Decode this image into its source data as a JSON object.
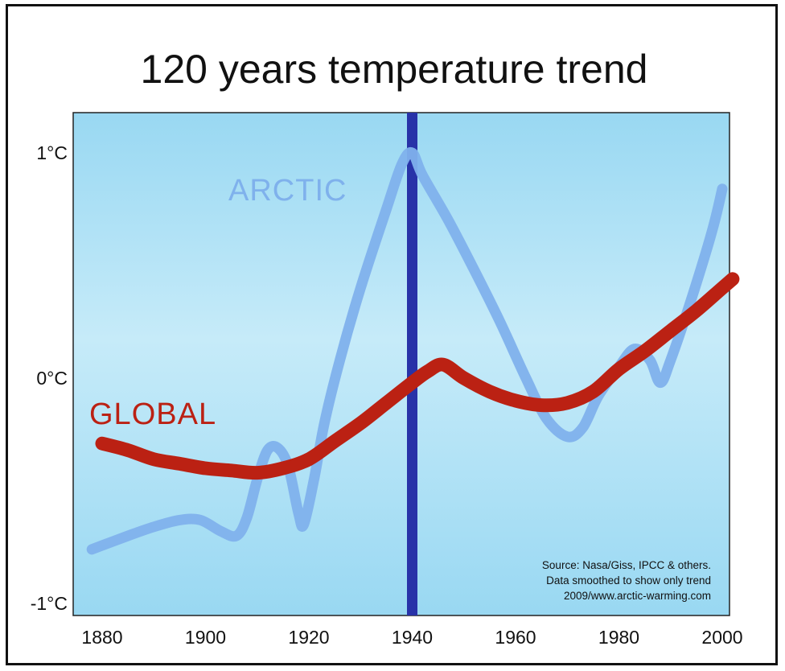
{
  "chart_data": {
    "type": "line",
    "title": "120 years temperature trend",
    "xlim": [
      1875,
      2002
    ],
    "ylim": [
      -1,
      1.15
    ],
    "x_ticks": [
      1880,
      1900,
      1920,
      1940,
      1960,
      1980,
      2000
    ],
    "y_ticks": [
      {
        "value": 1,
        "label": "1°C"
      },
      {
        "value": 0,
        "label": "0°C"
      },
      {
        "value": -1,
        "label": "-1°C"
      }
    ],
    "highlight_year": 1940,
    "series": [
      {
        "name": "ARCTIC",
        "color": "#7fb1ec",
        "points": [
          [
            1878,
            -0.76
          ],
          [
            1885,
            -0.7
          ],
          [
            1890,
            -0.66
          ],
          [
            1895,
            -0.63
          ],
          [
            1899,
            -0.63
          ],
          [
            1903,
            -0.68
          ],
          [
            1906,
            -0.7
          ],
          [
            1908,
            -0.62
          ],
          [
            1910,
            -0.45
          ],
          [
            1912,
            -0.32
          ],
          [
            1914,
            -0.31
          ],
          [
            1916,
            -0.39
          ],
          [
            1918,
            -0.6
          ],
          [
            1919,
            -0.65
          ],
          [
            1921,
            -0.45
          ],
          [
            1923,
            -0.2
          ],
          [
            1926,
            0.08
          ],
          [
            1930,
            0.4
          ],
          [
            1935,
            0.75
          ],
          [
            1938,
            0.95
          ],
          [
            1940,
            1.0
          ],
          [
            1942,
            0.9
          ],
          [
            1947,
            0.7
          ],
          [
            1952,
            0.48
          ],
          [
            1957,
            0.25
          ],
          [
            1962,
            0.0
          ],
          [
            1966,
            -0.18
          ],
          [
            1970,
            -0.26
          ],
          [
            1973,
            -0.22
          ],
          [
            1976,
            -0.08
          ],
          [
            1980,
            0.05
          ],
          [
            1983,
            0.13
          ],
          [
            1986,
            0.08
          ],
          [
            1988,
            -0.02
          ],
          [
            1990,
            0.08
          ],
          [
            1994,
            0.35
          ],
          [
            1998,
            0.65
          ],
          [
            2000,
            0.84
          ]
        ]
      },
      {
        "name": "GLOBAL",
        "color": "#bb2113",
        "points": [
          [
            1880,
            -0.29
          ],
          [
            1885,
            -0.32
          ],
          [
            1890,
            -0.36
          ],
          [
            1895,
            -0.38
          ],
          [
            1900,
            -0.4
          ],
          [
            1905,
            -0.41
          ],
          [
            1910,
            -0.42
          ],
          [
            1915,
            -0.4
          ],
          [
            1920,
            -0.36
          ],
          [
            1925,
            -0.28
          ],
          [
            1930,
            -0.2
          ],
          [
            1935,
            -0.11
          ],
          [
            1940,
            -0.02
          ],
          [
            1943,
            0.03
          ],
          [
            1946,
            0.06
          ],
          [
            1950,
            0.0
          ],
          [
            1955,
            -0.06
          ],
          [
            1960,
            -0.1
          ],
          [
            1965,
            -0.12
          ],
          [
            1970,
            -0.11
          ],
          [
            1975,
            -0.06
          ],
          [
            1980,
            0.04
          ],
          [
            1985,
            0.12
          ],
          [
            1990,
            0.21
          ],
          [
            1995,
            0.3
          ],
          [
            2000,
            0.4
          ],
          [
            2002,
            0.44
          ]
        ]
      }
    ],
    "annotations": {
      "arctic_label": "ARCTIC",
      "global_label": "GLOBAL",
      "source_lines": [
        "Source:  Nasa/Giss, IPCC & others.",
        "Data smoothed to show only trend",
        "2009/www.arctic-warming.com"
      ]
    },
    "background_gradient": [
      "#99d8f2",
      "#c6ebf9"
    ],
    "highlight_color": "#2832a8",
    "grid": false,
    "legend": "none"
  }
}
